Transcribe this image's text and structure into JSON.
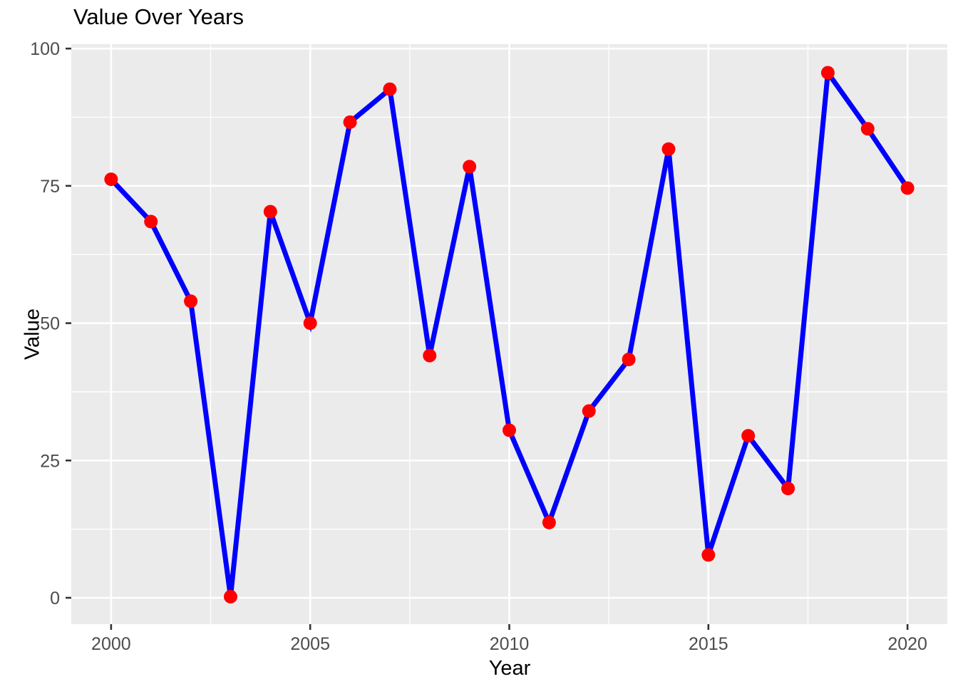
{
  "title": "Value Over Years",
  "colors": {
    "line": "#0000FF",
    "point": "#FF0000",
    "panel_background": "#EBEBEB",
    "gridline": "#FFFFFF",
    "tick_mark": "#333333",
    "tick_label": "#4D4D4D",
    "axis_title": "#000000",
    "figure_background": "#FFFFFF"
  },
  "chart_data": {
    "type": "line",
    "style": "ggplot2",
    "title": "Value Over Years",
    "xlabel": "Year",
    "ylabel": "Value",
    "x": [
      2000,
      2001,
      2002,
      2003,
      2004,
      2005,
      2006,
      2007,
      2008,
      2009,
      2010,
      2011,
      2012,
      2013,
      2014,
      2015,
      2016,
      2017,
      2018,
      2019,
      2020
    ],
    "values": [
      76.2,
      68.5,
      54.0,
      0.2,
      70.3,
      50.0,
      86.6,
      92.6,
      44.1,
      78.5,
      30.5,
      13.7,
      34.0,
      43.4,
      81.7,
      7.8,
      29.5,
      19.9,
      95.6,
      85.4,
      74.6
    ],
    "x_ticks": [
      2000,
      2005,
      2010,
      2015,
      2020
    ],
    "y_ticks": [
      0,
      25,
      50,
      75,
      100
    ],
    "x_minor_ticks": [
      2002.5,
      2007.5,
      2012.5,
      2017.5
    ],
    "y_minor_ticks": [
      12.5,
      37.5,
      62.5,
      87.5
    ],
    "xlim": [
      1999,
      2021
    ],
    "ylim": [
      -4.8,
      100.8
    ],
    "grid": "major-and-minor",
    "legend": "none",
    "line_width": 7,
    "point_radius": 9.5
  }
}
